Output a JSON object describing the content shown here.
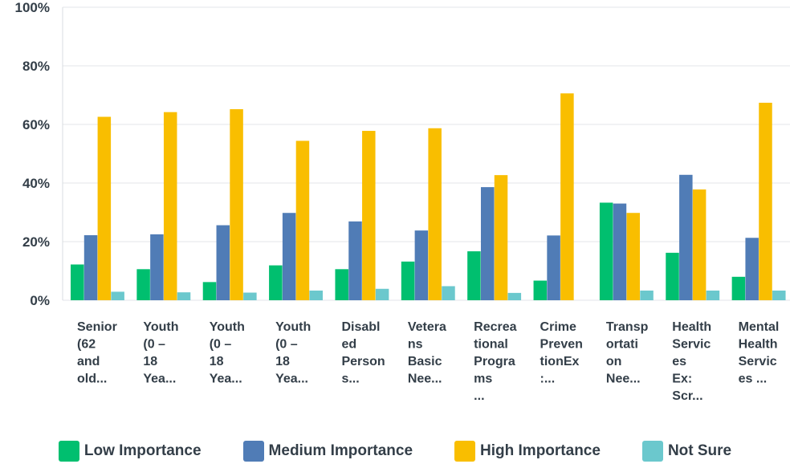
{
  "chart_data": {
    "type": "bar",
    "ylim": [
      0,
      100
    ],
    "yticks": [
      "0%",
      "20%",
      "40%",
      "60%",
      "80%",
      "100%"
    ],
    "grid": true,
    "legend_position": "bottom",
    "categories": [
      [
        "Senior",
        "(62",
        "and",
        "old..."
      ],
      [
        "Youth",
        "(0 –",
        "18",
        "Yea..."
      ],
      [
        "Youth",
        "(0 –",
        "18",
        "Yea..."
      ],
      [
        "Youth",
        "(0 –",
        "18",
        "Yea..."
      ],
      [
        "Disabl",
        "ed",
        "Person",
        "s..."
      ],
      [
        "Vetera",
        "ns",
        "Basic",
        "Nee..."
      ],
      [
        "Recrea",
        "tional",
        "Progra",
        "ms",
        "..."
      ],
      [
        "Crime",
        "Preven",
        "tionEx",
        ":..."
      ],
      [
        "Transp",
        "ortati",
        "on",
        "Nee..."
      ],
      [
        "Health",
        "Servic",
        "es",
        "Ex:",
        "Scr..."
      ],
      [
        "Mental",
        "Health",
        "Servic",
        "es ..."
      ]
    ],
    "series": [
      {
        "name": "Low Importance",
        "color": "#00bf6f",
        "values": [
          12.2,
          10.6,
          6.2,
          11.9,
          10.6,
          13.2,
          16.7,
          6.7,
          33.3,
          16.2,
          8.0
        ]
      },
      {
        "name": "Medium Importance",
        "color": "#507cb6",
        "values": [
          22.2,
          22.5,
          25.6,
          29.8,
          26.9,
          23.8,
          38.6,
          22.1,
          33.0,
          42.8,
          21.3
        ]
      },
      {
        "name": "High Importance",
        "color": "#f9be00",
        "values": [
          62.6,
          64.2,
          65.2,
          54.4,
          57.8,
          58.7,
          42.7,
          70.6,
          29.8,
          37.8,
          67.4
        ]
      },
      {
        "name": "Not Sure",
        "color": "#6bc8cd",
        "values": [
          2.9,
          2.7,
          2.6,
          3.3,
          3.9,
          4.8,
          2.5,
          0.0,
          3.3,
          3.3,
          3.3
        ]
      }
    ]
  }
}
